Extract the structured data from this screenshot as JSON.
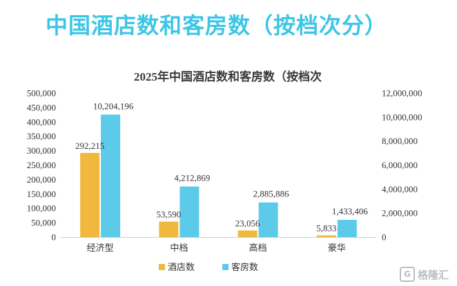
{
  "header": {
    "title": "中国酒店数和客房数（按档次分）"
  },
  "watermark": {
    "text": "格隆汇",
    "icon": "gelonghui-logo-icon"
  },
  "colors": {
    "hotels": "#f0b93e",
    "rooms": "#5ccbea",
    "title": "#3cc6e6"
  },
  "chart_data": {
    "type": "bar",
    "title": "2025年中国酒店数和客房数（按档次",
    "categories": [
      "经济型",
      "中档",
      "高档",
      "豪华"
    ],
    "series": [
      {
        "name": "酒店数",
        "values": [
          292215,
          53590,
          23056,
          5833
        ],
        "axis": "left",
        "labels": [
          "292,215",
          "53,590",
          "23,056",
          "5,833"
        ]
      },
      {
        "name": "客房数",
        "values": [
          10204196,
          4212869,
          2885886,
          1433406
        ],
        "axis": "right",
        "labels": [
          "10,204,196",
          "4,212,869",
          "2,885,886",
          "1,433,406"
        ]
      }
    ],
    "y_left": {
      "range": [
        0,
        500000
      ],
      "ticks": [
        "0",
        "50,000",
        "100,000",
        "150,000",
        "200,000",
        "250,000",
        "300,000",
        "350,000",
        "400,000",
        "450,000",
        "500,000"
      ]
    },
    "y_right": {
      "range": [
        0,
        12000000
      ],
      "ticks": [
        "0",
        "2,000,000",
        "4,000,000",
        "6,000,000",
        "8,000,000",
        "10,000,000",
        "12,000,000"
      ]
    },
    "grid": false,
    "legend": "bottom"
  }
}
